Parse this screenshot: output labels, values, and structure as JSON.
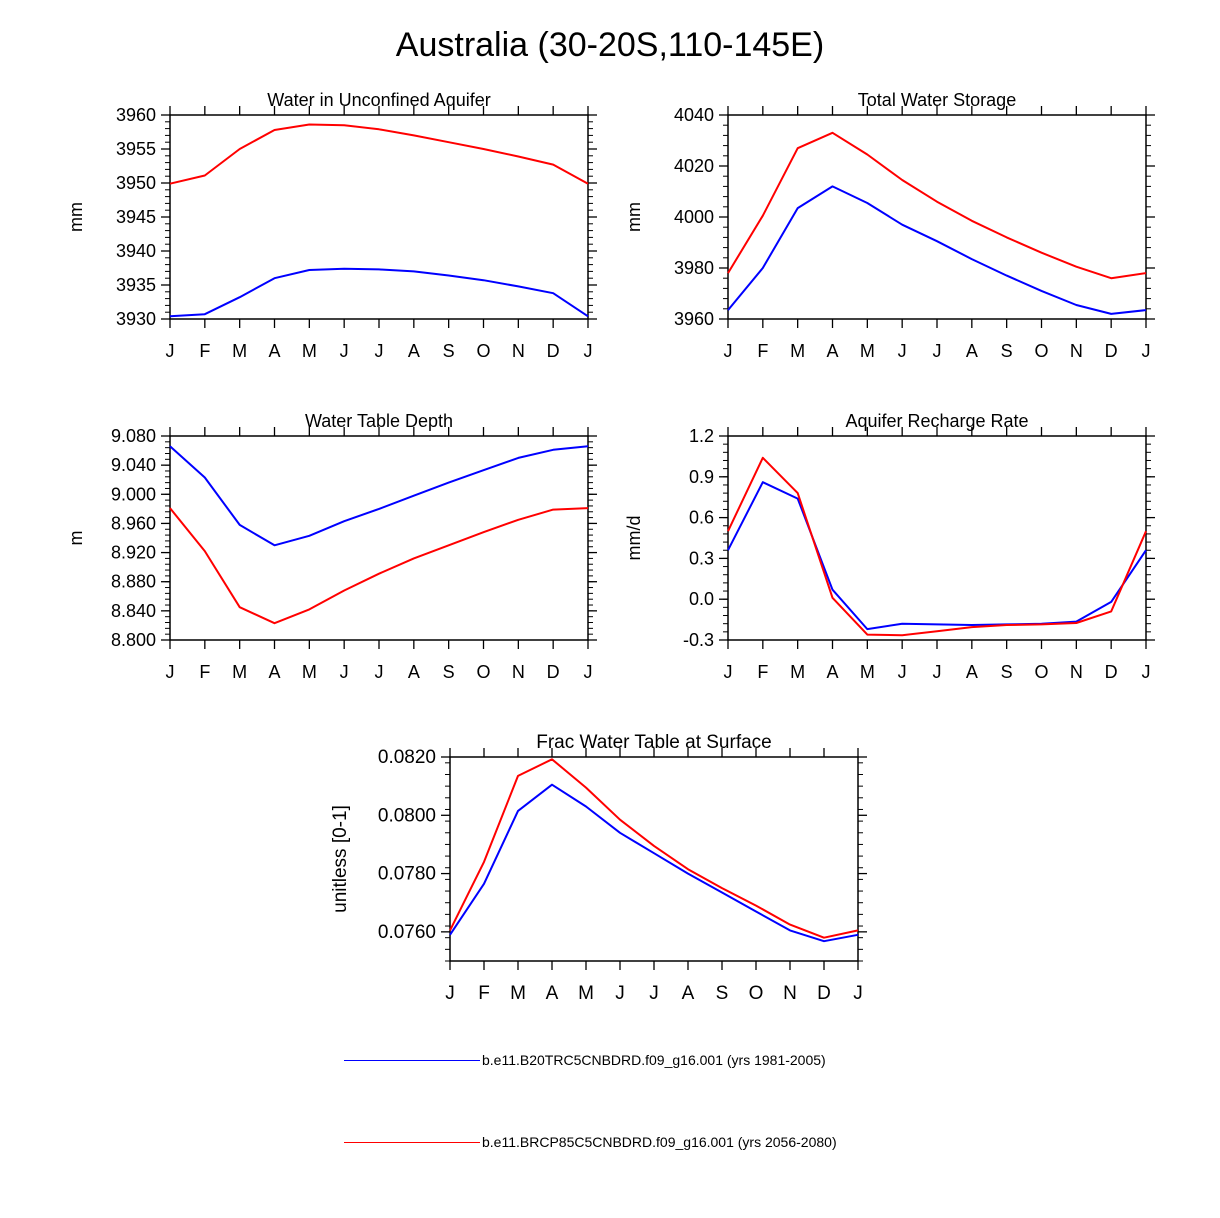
{
  "title": "Australia (30-20S,110-145E)",
  "months": [
    "J",
    "F",
    "M",
    "A",
    "M",
    "J",
    "J",
    "A",
    "S",
    "O",
    "N",
    "D",
    "J"
  ],
  "legend": [
    {
      "label": "b.e11.B20TRC5CNBDRD.f09_g16.001 (yrs 1981-2005)",
      "color": "#0000ff"
    },
    {
      "label": "b.e11.BRCP85C5CNBDRD.f09_g16.001 (yrs 2056-2080)",
      "color": "#ff0000"
    }
  ],
  "chart_data": [
    {
      "type": "line",
      "title": "Water in Unconfined Aquifer",
      "ylabel": "mm",
      "ylim": [
        3930,
        3960
      ],
      "yticks": [
        3930,
        3935,
        3940,
        3945,
        3950,
        3955,
        3960
      ],
      "ytick_labels": [
        "3930",
        "3935",
        "3940",
        "3945",
        "3950",
        "3955",
        "3960"
      ],
      "series": [
        {
          "name": "b.e11.B20TRC5CNBDRD.f09_g16.001 (yrs 1981-2005)",
          "color": "#0000ff",
          "values": [
            3930.4,
            3930.7,
            3933.2,
            3936.0,
            3937.2,
            3937.4,
            3937.3,
            3937.0,
            3936.4,
            3935.7,
            3934.8,
            3933.8,
            3930.4
          ]
        },
        {
          "name": "b.e11.BRCP85C5CNBDRD.f09_g16.001 (yrs 2056-2080)",
          "color": "#ff0000",
          "values": [
            3949.9,
            3951.1,
            3955.0,
            3957.8,
            3958.6,
            3958.5,
            3957.9,
            3957.0,
            3956.0,
            3955.0,
            3953.9,
            3952.7,
            3949.9
          ]
        }
      ]
    },
    {
      "type": "line",
      "title": "Total Water Storage",
      "ylabel": "mm",
      "ylim": [
        3960,
        4040
      ],
      "yticks": [
        3960,
        3980,
        4000,
        4020,
        4040
      ],
      "ytick_labels": [
        "3960",
        "3980",
        "4000",
        "4020",
        "4040"
      ],
      "series": [
        {
          "name": "b.e11.B20TRC5CNBDRD.f09_g16.001 (yrs 1981-2005)",
          "color": "#0000ff",
          "values": [
            3963.5,
            3980.0,
            4003.5,
            4012.0,
            4005.5,
            3997.0,
            3990.5,
            3983.5,
            3977.0,
            3971.0,
            3965.5,
            3962.0,
            3963.5
          ]
        },
        {
          "name": "b.e11.BRCP85C5CNBDRD.f09_g16.001 (yrs 2056-2080)",
          "color": "#ff0000",
          "values": [
            3978.0,
            4000.5,
            4027.0,
            4033.0,
            4024.5,
            4014.5,
            4006.0,
            3998.5,
            3992.0,
            3986.0,
            3980.5,
            3976.0,
            3978.0
          ]
        }
      ]
    },
    {
      "type": "line",
      "title": "Water Table Depth",
      "ylabel": "m",
      "ylim": [
        8.8,
        9.08
      ],
      "yticks": [
        8.8,
        8.84,
        8.88,
        8.92,
        8.96,
        9.0,
        9.04,
        9.08
      ],
      "ytick_labels": [
        "8.800",
        "8.840",
        "8.880",
        "8.920",
        "8.960",
        "9.000",
        "9.040",
        "9.080"
      ],
      "series": [
        {
          "name": "b.e11.B20TRC5CNBDRD.f09_g16.001 (yrs 1981-2005)",
          "color": "#0000ff",
          "values": [
            9.066,
            9.023,
            8.958,
            8.93,
            8.943,
            8.963,
            8.98,
            8.998,
            9.016,
            9.033,
            9.05,
            9.061,
            9.066
          ]
        },
        {
          "name": "b.e11.BRCP85C5CNBDRD.f09_g16.001 (yrs 2056-2080)",
          "color": "#ff0000",
          "values": [
            8.981,
            8.922,
            8.845,
            8.823,
            8.842,
            8.868,
            8.891,
            8.912,
            8.93,
            8.948,
            8.965,
            8.979,
            8.981
          ]
        }
      ]
    },
    {
      "type": "line",
      "title": "Aquifer Recharge Rate",
      "ylabel": "mm/d",
      "ylim": [
        -0.3,
        1.2
      ],
      "yticks": [
        -0.3,
        0.0,
        0.3,
        0.6,
        0.9,
        1.2
      ],
      "ytick_labels": [
        "-0.3",
        "0.0",
        "0.3",
        "0.6",
        "0.9",
        "1.2"
      ],
      "series": [
        {
          "name": "b.e11.B20TRC5CNBDRD.f09_g16.001 (yrs 1981-2005)",
          "color": "#0000ff",
          "values": [
            0.36,
            0.86,
            0.74,
            0.07,
            -0.22,
            -0.18,
            -0.185,
            -0.19,
            -0.185,
            -0.18,
            -0.165,
            -0.02,
            0.36
          ]
        },
        {
          "name": "b.e11.BRCP85C5CNBDRD.f09_g16.001 (yrs 2056-2080)",
          "color": "#ff0000",
          "values": [
            0.5,
            1.04,
            0.78,
            0.01,
            -0.26,
            -0.265,
            -0.235,
            -0.205,
            -0.19,
            -0.185,
            -0.175,
            -0.09,
            0.5
          ]
        }
      ]
    },
    {
      "type": "line",
      "title": "Frac Water Table at Surface",
      "ylabel": "unitless [0-1]",
      "ylim": [
        0.075,
        0.082
      ],
      "yticks": [
        0.076,
        0.078,
        0.08,
        0.082
      ],
      "ytick_labels": [
        "0.0760",
        "0.0780",
        "0.0800",
        "0.0820"
      ],
      "series": [
        {
          "name": "b.e11.B20TRC5CNBDRD.f09_g16.001 (yrs 1981-2005)",
          "color": "#0000ff",
          "values": [
            0.0759,
            0.07765,
            0.08015,
            0.08105,
            0.0803,
            0.0794,
            0.0787,
            0.078,
            0.07735,
            0.0767,
            0.07605,
            0.07568,
            0.0759
          ]
        },
        {
          "name": "b.e11.BRCP85C5CNBDRD.f09_g16.001 (yrs 2056-2080)",
          "color": "#ff0000",
          "values": [
            0.07605,
            0.0784,
            0.08135,
            0.08192,
            0.08095,
            0.07985,
            0.07895,
            0.07815,
            0.0775,
            0.0769,
            0.07625,
            0.0758,
            0.07605
          ]
        }
      ]
    }
  ]
}
